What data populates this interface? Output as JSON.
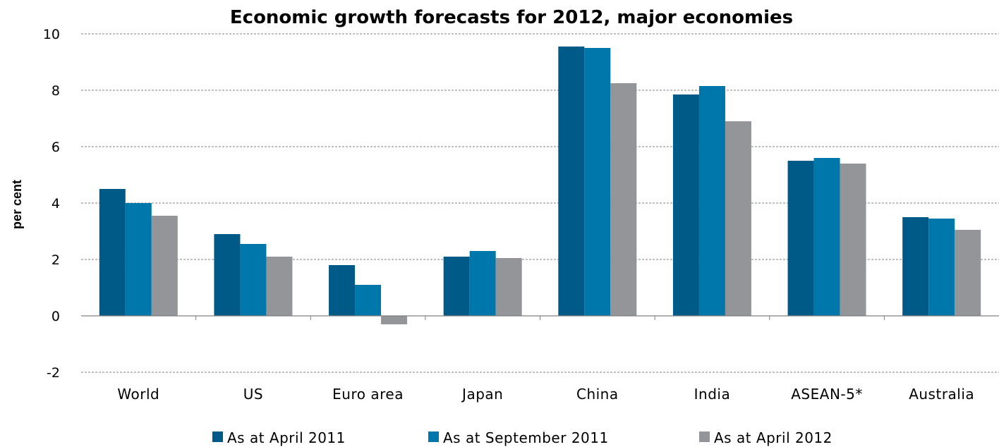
{
  "chart_data": {
    "type": "bar",
    "title": "Economic growth forecasts for 2012, major economies",
    "ylabel": "per cent",
    "xlabel": "",
    "ylim": [
      -2,
      10
    ],
    "yticks": [
      -2,
      0,
      2,
      4,
      6,
      8,
      10
    ],
    "ytick_labels": [
      "-2",
      "0",
      "2",
      "4",
      "6",
      "8",
      "10"
    ],
    "grid": true,
    "legend_position": "bottom",
    "categories": [
      "World",
      "US",
      "Euro area",
      "Japan",
      "China",
      "India",
      "ASEAN-5*",
      "Australia"
    ],
    "series": [
      {
        "name": "As at April 2011",
        "color": "#005A87",
        "values": [
          4.5,
          2.9,
          1.8,
          2.1,
          9.55,
          7.85,
          5.5,
          3.5
        ]
      },
      {
        "name": "As at September 2011",
        "color": "#0077AA",
        "values": [
          4.0,
          2.55,
          1.1,
          2.3,
          9.5,
          8.15,
          5.6,
          3.45
        ]
      },
      {
        "name": "As at April 2012",
        "color": "#939598",
        "values": [
          3.55,
          2.1,
          -0.3,
          2.05,
          8.25,
          6.9,
          5.4,
          3.05
        ]
      }
    ]
  }
}
